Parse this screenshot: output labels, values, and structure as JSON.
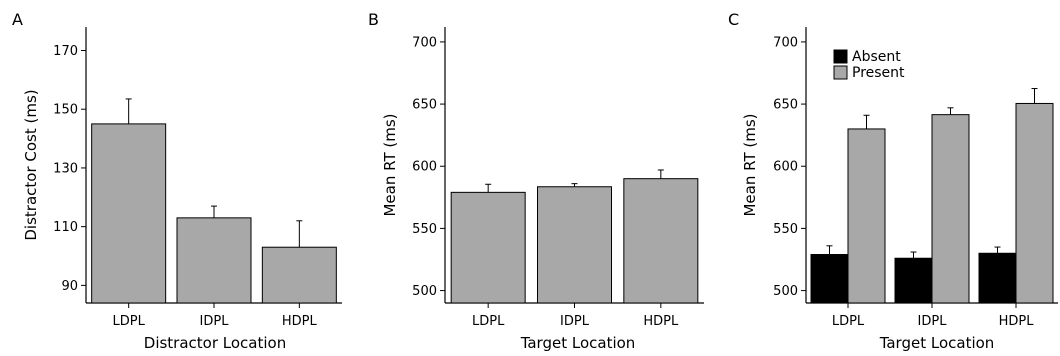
{
  "chart_data": [
    {
      "panel_label": "A",
      "type": "bar",
      "xlabel": "Distractor Location",
      "ylabel": "Distractor Cost (ms)",
      "categories": [
        "LDPL",
        "IDPL",
        "HDPL"
      ],
      "values": [
        145,
        113,
        103
      ],
      "errors": [
        8.5,
        4,
        9
      ],
      "ylim": [
        84,
        178
      ],
      "yticks": [
        90,
        110,
        130,
        150,
        170
      ],
      "bar_color": "#a8a8a8",
      "grid": false
    },
    {
      "panel_label": "B",
      "type": "bar",
      "xlabel": "Target Location",
      "ylabel": "Mean RT (ms)",
      "categories": [
        "LDPL",
        "IDPL",
        "HDPL"
      ],
      "values": [
        579,
        583.5,
        590
      ],
      "errors": [
        6.5,
        2.5,
        7
      ],
      "ylim": [
        490,
        712
      ],
      "yticks": [
        500,
        550,
        600,
        650,
        700
      ],
      "bar_color": "#a8a8a8",
      "grid": false
    },
    {
      "panel_label": "C",
      "type": "bar",
      "xlabel": "Target Location",
      "ylabel": "Mean RT (ms)",
      "categories": [
        "LDPL",
        "IDPL",
        "HDPL"
      ],
      "series": [
        {
          "name": "Absent",
          "values": [
            529,
            526,
            530
          ],
          "errors": [
            7,
            5,
            5
          ],
          "color": "#000000"
        },
        {
          "name": "Present",
          "values": [
            630,
            641.5,
            650.5
          ],
          "errors": [
            11,
            5.5,
            12
          ],
          "color": "#a8a8a8"
        }
      ],
      "legend_position": "top-left",
      "ylim": [
        490,
        712
      ],
      "yticks": [
        500,
        550,
        600,
        650,
        700
      ],
      "grid": false
    }
  ]
}
